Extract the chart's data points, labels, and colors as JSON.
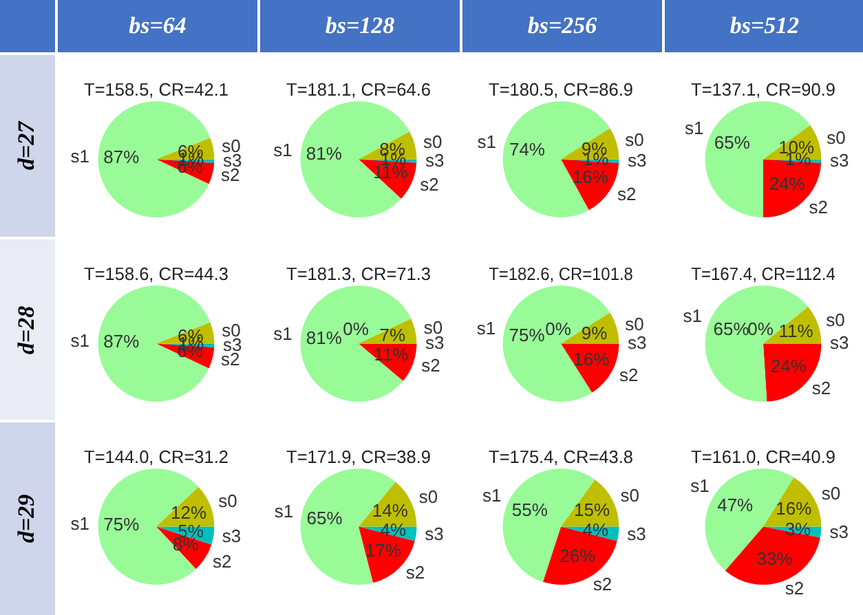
{
  "chart_data": [
    {
      "type": "pie",
      "title": "T=158.5, CR=42.1",
      "annotations": [
        "bs=64",
        "d=27"
      ],
      "categories": [
        "s0",
        "s1",
        "s2",
        "s3"
      ],
      "values": [
        6,
        87,
        6,
        1
      ],
      "value_labels": [
        "6%",
        "87%",
        "6%",
        "1%"
      ],
      "colors": [
        "#bfbf00",
        "#98fb98",
        "#ff0000",
        "#00bfbf"
      ]
    },
    {
      "type": "pie",
      "title": "T=181.1, CR=64.6",
      "annotations": [
        "bs=128"
      ],
      "categories": [
        "s0",
        "s1",
        "s2",
        "s3"
      ],
      "values": [
        8,
        81,
        11,
        1
      ],
      "value_labels": [
        "8%",
        "81%",
        "11%",
        "1%"
      ],
      "colors": [
        "#bfbf00",
        "#98fb98",
        "#ff0000",
        "#00bfbf"
      ]
    },
    {
      "type": "pie",
      "title": "T=180.5, CR=86.9",
      "annotations": [
        "bs=256"
      ],
      "categories": [
        "s0",
        "s1",
        "s2",
        "s3"
      ],
      "values": [
        9,
        74,
        16,
        1
      ],
      "value_labels": [
        "9%",
        "74%",
        "16%",
        "1%"
      ],
      "colors": [
        "#bfbf00",
        "#98fb98",
        "#ff0000",
        "#00bfbf"
      ]
    },
    {
      "type": "pie",
      "title": "T=137.1, CR=90.9",
      "annotations": [
        "bs=512"
      ],
      "categories": [
        "s0",
        "s1",
        "s2",
        "s3"
      ],
      "values": [
        10,
        65,
        24,
        1
      ],
      "value_labels": [
        "10%",
        "65%",
        "24%",
        "1%"
      ],
      "colors": [
        "#bfbf00",
        "#98fb98",
        "#ff0000",
        "#00bfbf"
      ]
    },
    {
      "type": "pie",
      "title": "T=158.6, CR=44.3",
      "annotations": [
        "d=28"
      ],
      "categories": [
        "s0",
        "s1",
        "s2",
        "s3"
      ],
      "values": [
        6,
        87,
        6,
        1
      ],
      "value_labels": [
        "6%",
        "87%",
        "6%",
        "1%"
      ],
      "colors": [
        "#bfbf00",
        "#98fb98",
        "#ff0000",
        "#00bfbf"
      ]
    },
    {
      "type": "pie",
      "title": "T=181.3, CR=71.3",
      "categories": [
        "s0",
        "s1",
        "s2",
        "s3"
      ],
      "values": [
        7,
        81,
        11,
        0
      ],
      "value_labels": [
        "7%",
        "81%",
        "11%",
        "0%"
      ],
      "colors": [
        "#bfbf00",
        "#98fb98",
        "#ff0000",
        "#00bfbf"
      ]
    },
    {
      "type": "pie",
      "title": "T=182.6, CR=101.8",
      "categories": [
        "s0",
        "s1",
        "s2",
        "s3"
      ],
      "values": [
        9,
        75,
        16,
        0
      ],
      "value_labels": [
        "9%",
        "75%",
        "16%",
        "0%"
      ],
      "colors": [
        "#bfbf00",
        "#98fb98",
        "#ff0000",
        "#00bfbf"
      ]
    },
    {
      "type": "pie",
      "title": "T=167.4, CR=112.4",
      "categories": [
        "s0",
        "s1",
        "s2",
        "s3"
      ],
      "values": [
        11,
        65,
        24,
        0
      ],
      "value_labels": [
        "11%",
        "65%",
        "24%",
        "0%"
      ],
      "colors": [
        "#bfbf00",
        "#98fb98",
        "#ff0000",
        "#00bfbf"
      ]
    },
    {
      "type": "pie",
      "title": "T=144.0, CR=31.2",
      "annotations": [
        "d=29"
      ],
      "categories": [
        "s0",
        "s1",
        "s2",
        "s3"
      ],
      "values": [
        12,
        75,
        8,
        5
      ],
      "value_labels": [
        "12%",
        "75%",
        "8%",
        "5%"
      ],
      "colors": [
        "#bfbf00",
        "#98fb98",
        "#ff0000",
        "#00bfbf"
      ]
    },
    {
      "type": "pie",
      "title": "T=171.9, CR=38.9",
      "categories": [
        "s0",
        "s1",
        "s2",
        "s3"
      ],
      "values": [
        14,
        65,
        17,
        4
      ],
      "value_labels": [
        "14%",
        "65%",
        "17%",
        "4%"
      ],
      "colors": [
        "#bfbf00",
        "#98fb98",
        "#ff0000",
        "#00bfbf"
      ]
    },
    {
      "type": "pie",
      "title": "T=175.4, CR=43.8",
      "categories": [
        "s0",
        "s1",
        "s2",
        "s3"
      ],
      "values": [
        15,
        55,
        26,
        4
      ],
      "value_labels": [
        "15%",
        "55%",
        "26%",
        "4%"
      ],
      "colors": [
        "#bfbf00",
        "#98fb98",
        "#ff0000",
        "#00bfbf"
      ]
    },
    {
      "type": "pie",
      "title": "T=161.0, CR=40.9",
      "categories": [
        "s0",
        "s1",
        "s2",
        "s3"
      ],
      "values": [
        16,
        47,
        33,
        3
      ],
      "value_labels": [
        "16%",
        "47%",
        "33%",
        "3%"
      ],
      "colors": [
        "#bfbf00",
        "#98fb98",
        "#ff0000",
        "#00bfbf"
      ]
    }
  ]
}
